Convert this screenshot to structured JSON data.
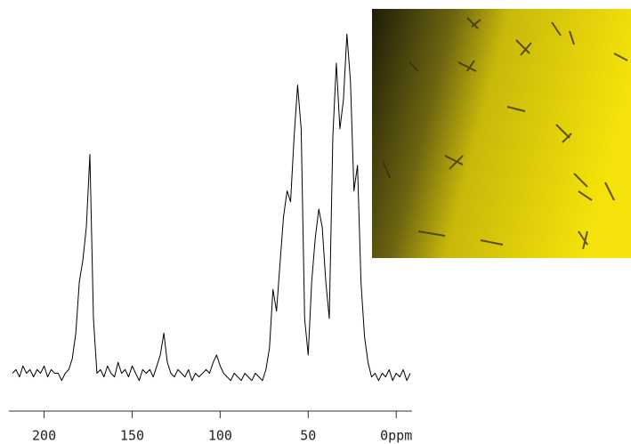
{
  "chart_data": {
    "type": "line",
    "x": [
      218,
      216,
      214,
      212,
      210,
      208,
      206,
      204,
      202,
      200,
      198,
      196,
      194,
      192,
      190,
      188,
      186,
      184,
      182,
      180,
      178,
      176,
      174,
      172,
      170,
      168,
      166,
      164,
      162,
      160,
      158,
      156,
      154,
      152,
      150,
      148,
      146,
      144,
      142,
      140,
      138,
      136,
      134,
      132,
      130,
      128,
      126,
      124,
      122,
      120,
      118,
      116,
      114,
      112,
      110,
      108,
      106,
      104,
      102,
      100,
      98,
      96,
      94,
      92,
      90,
      88,
      86,
      84,
      82,
      80,
      78,
      76,
      74,
      72,
      70,
      68,
      66,
      64,
      62,
      60,
      58,
      56,
      54,
      52,
      50,
      48,
      46,
      44,
      42,
      40,
      38,
      36,
      34,
      32,
      30,
      28,
      26,
      24,
      22,
      20,
      18,
      16,
      14,
      12,
      10,
      8,
      6,
      4,
      2,
      0,
      -2,
      -4,
      -6,
      -8
    ],
    "series": [
      {
        "color": "#000000",
        "values": [
          5,
          6,
          4,
          7,
          5,
          6,
          4,
          6,
          5,
          7,
          4,
          6,
          5,
          5,
          3,
          5,
          6,
          9,
          16,
          30,
          36,
          45,
          65,
          20,
          5,
          6,
          4,
          7,
          5,
          4,
          8,
          5,
          6,
          4,
          7,
          5,
          3,
          6,
          5,
          6,
          4,
          7,
          10,
          16,
          8,
          5,
          4,
          6,
          5,
          4,
          6,
          3,
          5,
          4,
          5,
          6,
          5,
          8,
          10,
          7,
          5,
          4,
          3,
          5,
          4,
          3,
          5,
          4,
          3,
          5,
          4,
          3,
          6,
          12,
          28,
          22,
          35,
          48,
          55,
          52,
          70,
          84,
          72,
          20,
          10,
          30,
          42,
          50,
          45,
          30,
          20,
          70,
          90,
          72,
          80,
          98,
          85,
          55,
          62,
          30,
          15,
          8,
          4,
          5,
          3,
          5,
          4,
          6,
          3,
          5,
          4,
          6,
          3,
          5
        ]
      }
    ],
    "xlim": [
      220,
      -9
    ],
    "xticks": [
      200,
      150,
      100,
      50,
      {
        "value": 0,
        "label": "0ppm"
      }
    ],
    "ylim": [
      0,
      100
    ]
  }
}
